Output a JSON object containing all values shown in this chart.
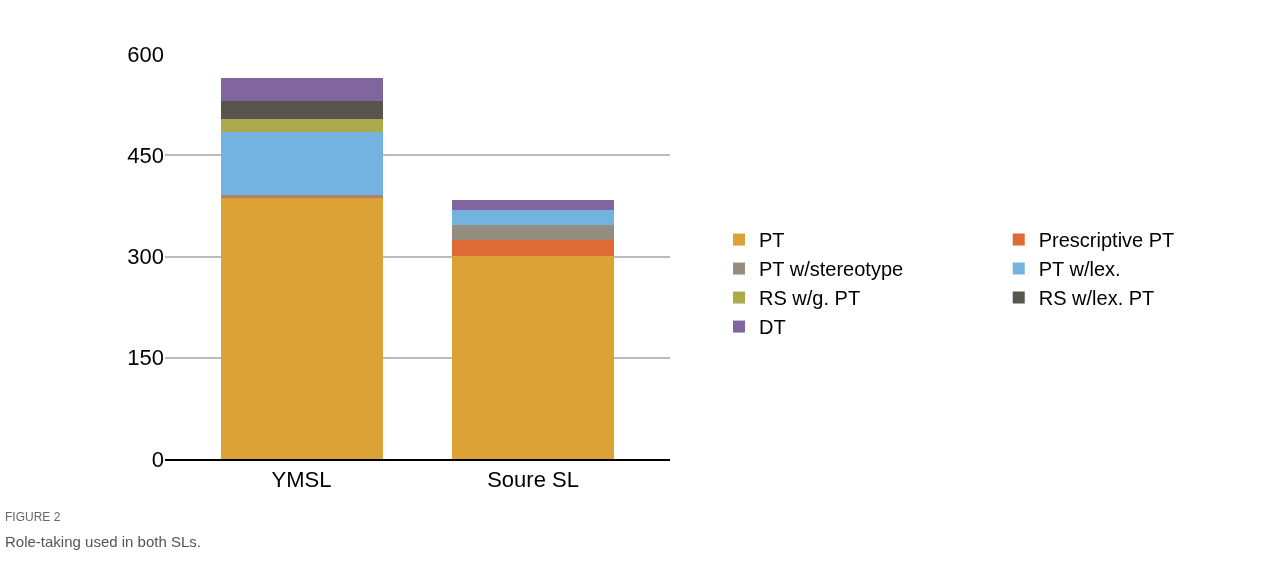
{
  "chart_data": {
    "type": "bar",
    "stacked": true,
    "categories": [
      "YMSL",
      "Soure SL"
    ],
    "series": [
      {
        "name": "PT",
        "color": "#dba236",
        "values": [
          386,
          301
        ]
      },
      {
        "name": "Prescriptive PT",
        "color": "#de6b35",
        "values": [
          2,
          23
        ]
      },
      {
        "name": "PT w/stereotype",
        "color": "#958d80",
        "values": [
          3,
          23
        ]
      },
      {
        "name": "PT w/lex.",
        "color": "#74b3e0",
        "values": [
          94,
          22
        ]
      },
      {
        "name": "RS w/g. PT",
        "color": "#abab4e",
        "values": [
          19,
          0
        ]
      },
      {
        "name": "RS w/lex. PT",
        "color": "#58544e",
        "values": [
          26,
          0
        ]
      },
      {
        "name": "DT",
        "color": "#80659f",
        "values": [
          34,
          15
        ]
      }
    ],
    "ylim": [
      0,
      600
    ],
    "yticks": [
      0,
      150,
      300,
      450,
      600
    ],
    "grid": "y",
    "legend": "right",
    "annotations": [
      "FIGURE 2",
      "Role-taking used in both SLs."
    ]
  }
}
